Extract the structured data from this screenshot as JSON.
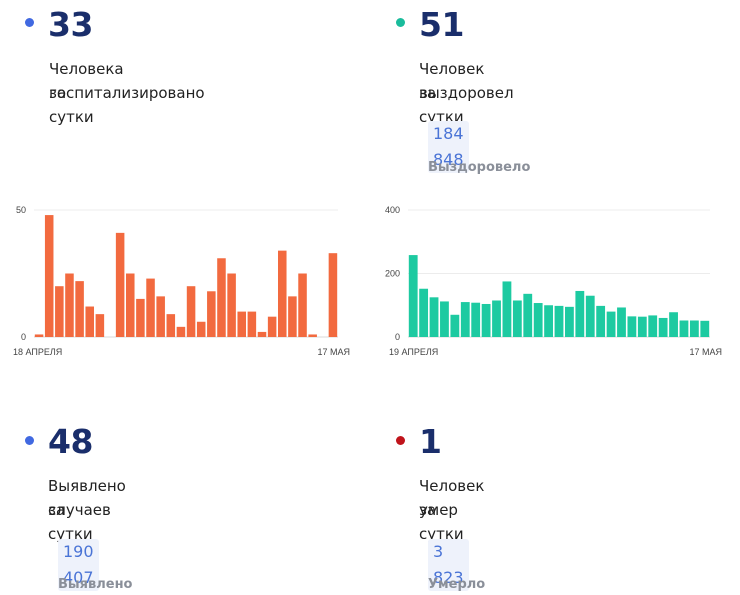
{
  "stats": {
    "hospitalized": {
      "value": "33",
      "label1": "Человека госпитализировано",
      "label2": "за сутки",
      "color": "#4169e1"
    },
    "recovered": {
      "value": "51",
      "label1": "Человек выздоровел",
      "label2": "за сутки",
      "total": "184 848",
      "total_label": "Выздоровело",
      "color": "#1abc9c"
    },
    "cases": {
      "value": "48",
      "label1": "Выявлено случаев",
      "label2": "за сутки",
      "total": "190 407",
      "total_label": "Выявлено",
      "color": "#4169e1"
    },
    "deaths": {
      "value": "1",
      "label1": "Человек умер",
      "label2": "за сутки",
      "total": "3 823",
      "total_label": "Умерло",
      "color": "#c0141b"
    }
  },
  "chart_data": [
    {
      "type": "bar",
      "color": "#f26a3f",
      "ylim": [
        0,
        50
      ],
      "yticks": [
        "0",
        "50"
      ],
      "x_start_label": "18 АПРЕЛЯ",
      "x_end_label": "17 МАЯ",
      "values": [
        1,
        48,
        20,
        25,
        22,
        12,
        9,
        0,
        41,
        25,
        15,
        23,
        16,
        9,
        4,
        20,
        6,
        18,
        31,
        25,
        10,
        10,
        2,
        8,
        34,
        16,
        25,
        1,
        0,
        33
      ]
    },
    {
      "type": "bar",
      "color": "#1dcaa1",
      "ylim": [
        0,
        400
      ],
      "yticks": [
        "0",
        "200",
        "400"
      ],
      "x_start_label": "19 АПРЕЛЯ",
      "x_end_label": "17 МАЯ",
      "values": [
        258,
        152,
        125,
        112,
        70,
        110,
        108,
        104,
        115,
        175,
        115,
        136,
        107,
        100,
        98,
        95,
        145,
        130,
        98,
        80,
        93,
        65,
        64,
        68,
        60,
        78,
        52,
        52,
        51
      ]
    }
  ]
}
